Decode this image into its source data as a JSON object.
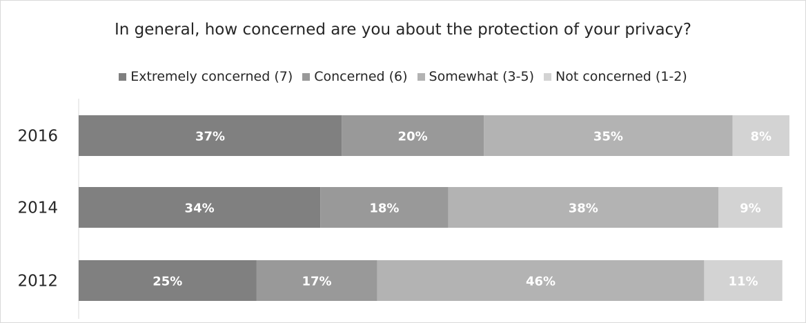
{
  "chart_data": {
    "type": "bar",
    "orientation": "horizontal",
    "stacked": true,
    "title": "In general, how concerned are you about the protection of your privacy?",
    "xlabel": "",
    "ylabel": "",
    "categories": [
      "2016",
      "2014",
      "2012"
    ],
    "series": [
      {
        "name": "Extremely concerned (7)",
        "color": "#808080",
        "values": [
          37,
          34,
          25
        ],
        "labels": [
          "37%",
          "34%",
          "25%"
        ]
      },
      {
        "name": "Concerned (6)",
        "color": "#999999",
        "values": [
          20,
          18,
          17
        ],
        "labels": [
          "20%",
          "18%",
          "17%"
        ]
      },
      {
        "name": "Somewhat (3-5)",
        "color": "#b3b3b3",
        "values": [
          35,
          38,
          46
        ],
        "labels": [
          "35%",
          "38%",
          "46%"
        ]
      },
      {
        "name": "Not concerned (1-2)",
        "color": "#d3d3d3",
        "values": [
          8,
          9,
          11
        ],
        "labels": [
          "8%",
          "9%",
          "11%"
        ]
      }
    ],
    "xlim": [
      0,
      100
    ],
    "grid": false,
    "legend_position": "top"
  }
}
